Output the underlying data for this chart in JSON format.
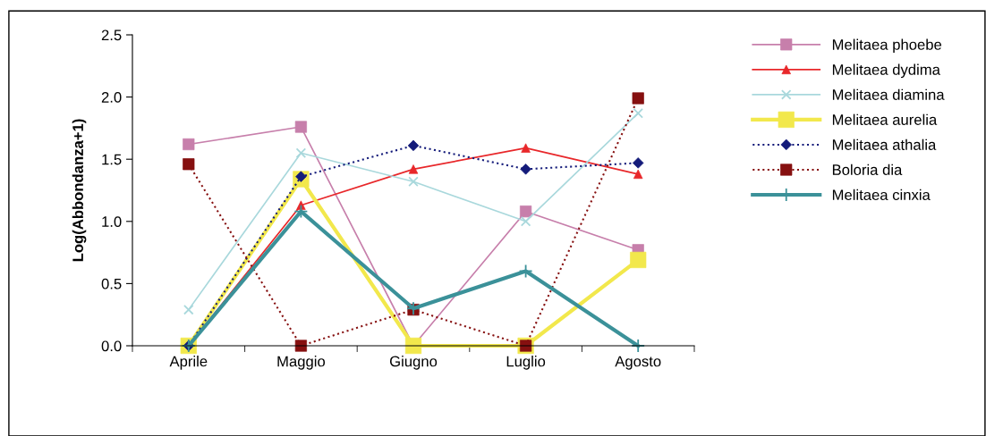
{
  "chart_data": {
    "type": "line",
    "ylabel": "Log(Abbondanza+1)",
    "categories": [
      "Aprile",
      "Maggio",
      "Giugno",
      "Luglio",
      "Agosto"
    ],
    "ylim": [
      0,
      2.5
    ],
    "yticks": [
      {
        "value": 0,
        "label": "0.0"
      },
      {
        "value": 0.5,
        "label": "0.5"
      },
      {
        "value": 1,
        "label": "1.0"
      },
      {
        "value": 1.5,
        "label": "1.5"
      },
      {
        "value": 2,
        "label": "2.0"
      },
      {
        "value": 2.5,
        "label": "2.5"
      }
    ],
    "grid": false,
    "legend": "right",
    "series": [
      {
        "name": "Melitaea phoebe",
        "color": "#c77fab",
        "marker": "square",
        "line_style": "solid",
        "values": [
          1.62,
          1.76,
          0,
          1.08,
          0.77
        ]
      },
      {
        "name": "Melitaea dydima",
        "color": "#e8272a",
        "marker": "triangle",
        "line_style": "solid",
        "values": [
          0,
          1.13,
          1.42,
          1.59,
          1.38
        ]
      },
      {
        "name": "Melitaea diamina",
        "color": "#a9d8dc",
        "marker": "cross",
        "line_style": "solid",
        "values": [
          0.29,
          1.55,
          1.32,
          1.0,
          1.87
        ]
      },
      {
        "name": "Melitaea aurelia",
        "color": "#f2e84c",
        "marker": "square",
        "line_style": "solid",
        "values": [
          0,
          1.34,
          0,
          0,
          0.69
        ]
      },
      {
        "name": "Melitaea athalia",
        "color": "#141b7a",
        "marker": "diamond",
        "line_style": "dotted",
        "values": [
          0,
          1.36,
          1.61,
          1.42,
          1.47
        ]
      },
      {
        "name": "Boloria dia",
        "color": "#861010",
        "marker": "square",
        "line_style": "dotted",
        "values": [
          1.46,
          0,
          0.29,
          0,
          1.99
        ]
      },
      {
        "name": "Melitaea cinxia",
        "color": "#3b9199",
        "marker": "plus",
        "line_style": "solid",
        "values": [
          0,
          1.08,
          0.3,
          0.6,
          0
        ]
      }
    ]
  }
}
